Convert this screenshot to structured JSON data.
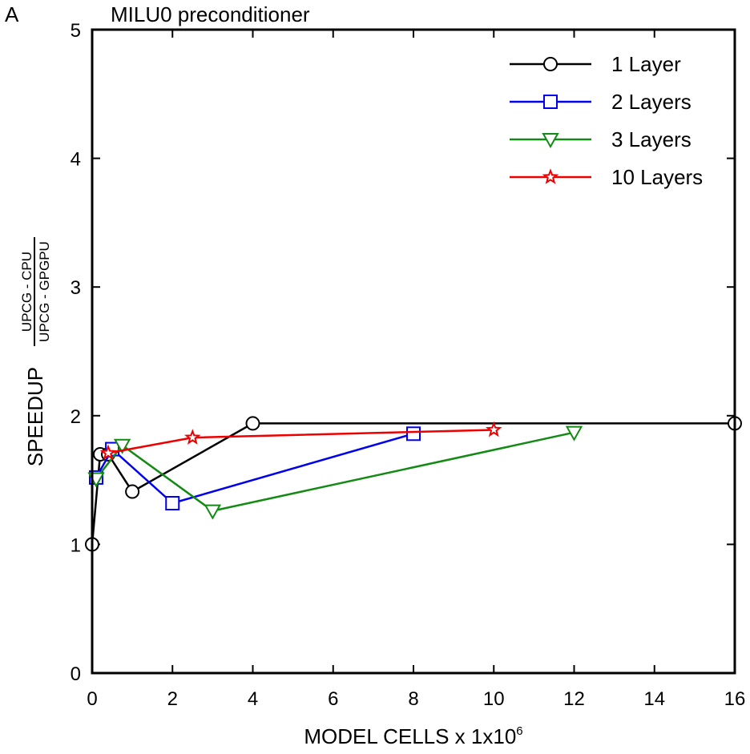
{
  "chart_data": {
    "type": "line",
    "panel_label": "A",
    "title": "MILU0 preconditioner",
    "xlabel_main": "MODEL CELLS x 1x10",
    "xlabel_exp": "6",
    "ylabel_main": "SPEEDUP",
    "ylabel_numerator": "UPCG - CPU",
    "ylabel_denominator": "UPCG - GPGPU",
    "xlim": [
      0,
      16
    ],
    "ylim": [
      0,
      5
    ],
    "xticks": [
      0,
      2,
      4,
      6,
      8,
      10,
      12,
      14,
      16
    ],
    "yticks": [
      0,
      1,
      2,
      3,
      4,
      5
    ],
    "xtick_labels": [
      "0",
      "2",
      "4",
      "6",
      "8",
      "10",
      "12",
      "14",
      "16"
    ],
    "ytick_labels": [
      "0",
      "1",
      "2",
      "3",
      "4",
      "5"
    ],
    "legend_position": "top-right",
    "series": [
      {
        "name": "1 Layer",
        "color": "#000000",
        "marker": "circle",
        "x": [
          0.0,
          0.2,
          0.4,
          1.0,
          4.0,
          16.0
        ],
        "y": [
          1.0,
          1.7,
          1.7,
          1.41,
          1.94,
          1.94
        ]
      },
      {
        "name": "2 Layers",
        "color": "#0000ee",
        "marker": "square",
        "x": [
          0.1,
          0.5,
          2.0,
          8.0
        ],
        "y": [
          1.52,
          1.74,
          1.32,
          1.86
        ]
      },
      {
        "name": "3 Layers",
        "color": "#138a13",
        "marker": "triangle-down",
        "x": [
          0.1,
          0.75,
          3.0,
          12.0
        ],
        "y": [
          1.51,
          1.77,
          1.26,
          1.87
        ]
      },
      {
        "name": "10 Layers",
        "color": "#ee0000",
        "marker": "star",
        "x": [
          0.4,
          2.5,
          10.0
        ],
        "y": [
          1.71,
          1.83,
          1.89
        ]
      }
    ]
  }
}
